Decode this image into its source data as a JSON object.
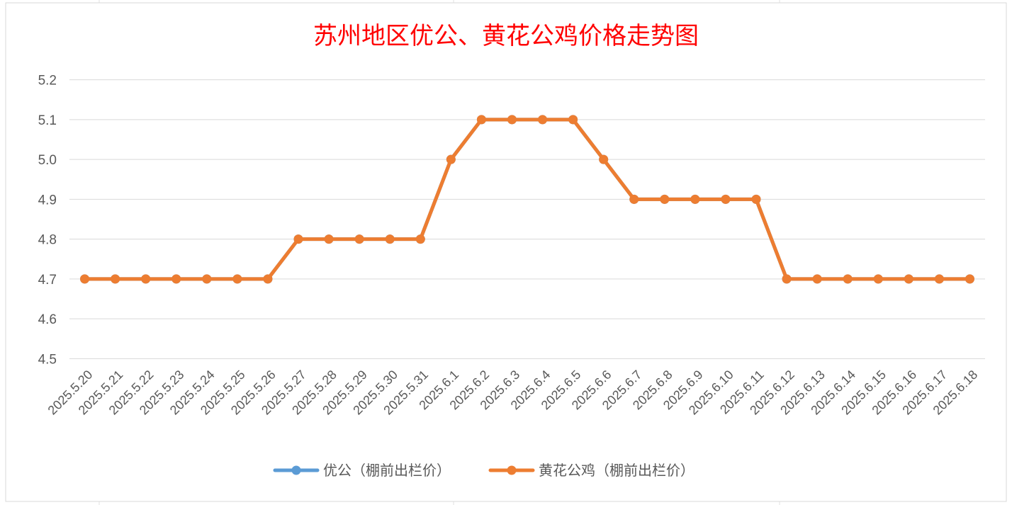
{
  "chart_data": {
    "type": "line",
    "title": "苏州地区优公、黄花公鸡价格走势图",
    "xlabel": "",
    "ylabel": "",
    "ylim": [
      4.5,
      5.2
    ],
    "yticks": [
      "4.5",
      "4.6",
      "4.7",
      "4.8",
      "4.9",
      "5.0",
      "5.1",
      "5.2"
    ],
    "grid": true,
    "legend_position": "bottom",
    "categories": [
      "2025.5.20",
      "2025.5.21",
      "2025.5.22",
      "2025.5.23",
      "2025.5.24",
      "2025.5.25",
      "2025.5.26",
      "2025.5.27",
      "2025.5.28",
      "2025.5.29",
      "2025.5.30",
      "2025.5.31",
      "2025.6.1",
      "2025.6.2",
      "2025.6.3",
      "2025.6.4",
      "2025.6.5",
      "2025.6.6",
      "2025.6.7",
      "2025.6.8",
      "2025.6.9",
      "2025.6.10",
      "2025.6.11",
      "2025.6.12",
      "2025.6.13",
      "2025.6.14",
      "2025.6.15",
      "2025.6.16",
      "2025.6.17",
      "2025.6.18"
    ],
    "series": [
      {
        "name": "优公（棚前出栏价）",
        "color": "#5b9bd5",
        "values": [
          4.7,
          4.7,
          4.7,
          4.7,
          4.7,
          4.7,
          4.7,
          4.8,
          4.8,
          4.8,
          4.8,
          4.8,
          5.0,
          5.1,
          5.1,
          5.1,
          5.1,
          5.0,
          4.9,
          4.9,
          4.9,
          4.9,
          4.9,
          4.7,
          4.7,
          4.7,
          4.7,
          4.7,
          4.7,
          4.7
        ]
      },
      {
        "name": "黄花公鸡（棚前出栏价）",
        "color": "#ed7d31",
        "values": [
          4.7,
          4.7,
          4.7,
          4.7,
          4.7,
          4.7,
          4.7,
          4.8,
          4.8,
          4.8,
          4.8,
          4.8,
          5.0,
          5.1,
          5.1,
          5.1,
          5.1,
          5.0,
          4.9,
          4.9,
          4.9,
          4.9,
          4.9,
          4.7,
          4.7,
          4.7,
          4.7,
          4.7,
          4.7,
          4.7
        ]
      }
    ]
  }
}
